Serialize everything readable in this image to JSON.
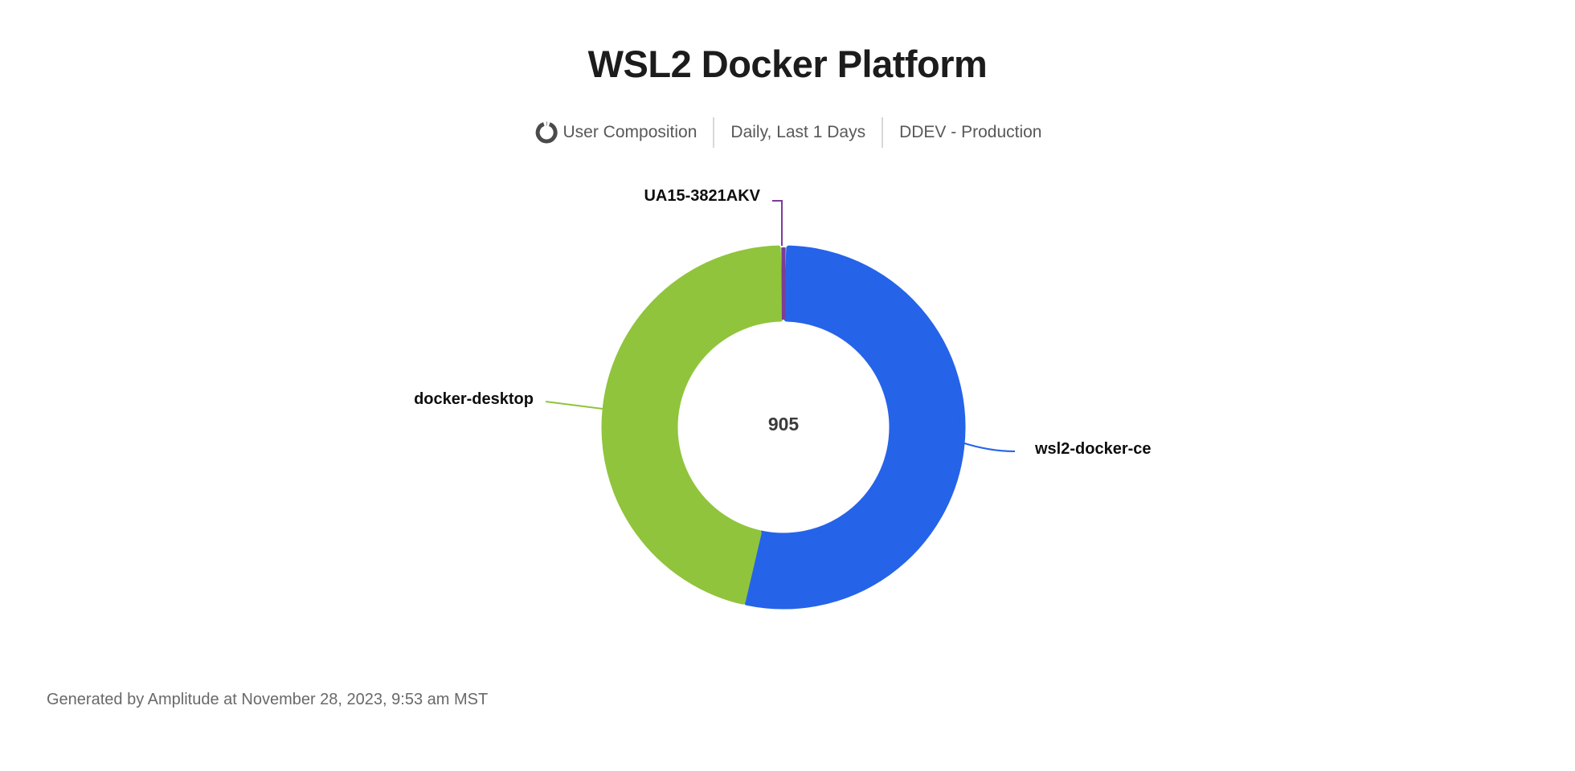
{
  "header": {
    "title": "WSL2 Docker Platform",
    "meta": {
      "chart_type_label": "User Composition",
      "date_range_label": "Daily, Last 1 Days",
      "project_label": "DDEV - Production",
      "icon": "donut-chart-icon"
    }
  },
  "chart_data": {
    "type": "pie",
    "variant": "donut",
    "title": "WSL2 Docker Platform",
    "center_total": "905",
    "legend_position": "none",
    "labels_style": "outside-callouts",
    "segments": [
      {
        "name": "wsl2-docker-ce",
        "color": "#2563e9",
        "start_deg": 1.75,
        "end_deg": 191.75,
        "share_pct_est": 52.8
      },
      {
        "name": "docker-desktop",
        "color": "#90c43c",
        "start_deg": 193.15,
        "end_deg": 358.25,
        "share_pct_est": 45.9
      },
      {
        "name": "UA15-3821AKV",
        "color": "#7d3c98",
        "start_deg": -0.45,
        "end_deg": 0.45,
        "share_pct_est": 0.3
      }
    ]
  },
  "footer": {
    "generated_text": "Generated by Amplitude at November 28, 2023, 9:53 am MST"
  }
}
